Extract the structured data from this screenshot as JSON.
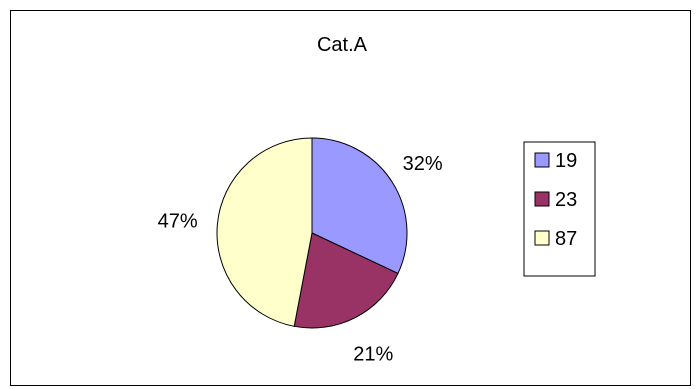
{
  "chart_data": {
    "type": "pie",
    "title": "Cat.A",
    "slices": [
      {
        "label": "19",
        "value": 32,
        "percent_label": "32%",
        "color": "#9999FF"
      },
      {
        "label": "23",
        "value": 21,
        "percent_label": "21%",
        "color": "#993366"
      },
      {
        "label": "87",
        "value": 47,
        "percent_label": "47%",
        "color": "#FFFFCC"
      }
    ],
    "legend_position": "right"
  }
}
